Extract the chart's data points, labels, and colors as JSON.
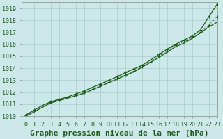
{
  "title": "Graphe pression niveau de la mer (hPa)",
  "xlim": [
    -0.5,
    23
  ],
  "ylim": [
    1010,
    1019.5
  ],
  "xticks": [
    0,
    1,
    2,
    3,
    4,
    5,
    6,
    7,
    8,
    9,
    10,
    11,
    12,
    13,
    14,
    15,
    16,
    17,
    18,
    19,
    20,
    21,
    22,
    23
  ],
  "yticks": [
    1010,
    1011,
    1012,
    1013,
    1014,
    1015,
    1016,
    1017,
    1018,
    1019
  ],
  "background_color": "#cce8e8",
  "grid_color": "#aacccc",
  "line_color_dark": "#1a5c1a",
  "line_color_mid": "#2d7a2d",
  "line1_x": [
    0,
    1,
    2,
    3,
    4,
    5,
    6,
    7,
    8,
    9,
    10,
    11,
    12,
    13,
    14,
    15,
    16,
    17,
    18,
    19,
    20,
    21,
    22,
    23
  ],
  "line1_y": [
    1010.1,
    1010.5,
    1010.9,
    1011.2,
    1011.4,
    1011.6,
    1011.85,
    1012.1,
    1012.4,
    1012.7,
    1013.0,
    1013.3,
    1013.65,
    1013.95,
    1014.25,
    1014.7,
    1015.15,
    1015.6,
    1016.0,
    1016.35,
    1016.7,
    1017.2,
    1018.3,
    1019.35
  ],
  "line2_x": [
    0,
    1,
    2,
    3,
    4,
    5,
    6,
    7,
    8,
    9,
    10,
    11,
    12,
    13,
    14,
    15,
    16,
    17,
    18,
    19,
    20,
    21,
    22,
    23
  ],
  "line2_y": [
    1010.05,
    1010.45,
    1010.85,
    1011.15,
    1011.35,
    1011.55,
    1011.75,
    1011.95,
    1012.25,
    1012.55,
    1012.85,
    1013.15,
    1013.45,
    1013.75,
    1014.15,
    1014.55,
    1015.0,
    1015.45,
    1015.9,
    1016.2,
    1016.6,
    1017.05,
    1017.6,
    1018.3
  ],
  "line3_x": [
    0,
    1,
    2,
    3,
    4,
    5,
    6,
    7,
    8,
    9,
    10,
    11,
    12,
    13,
    14,
    15,
    16,
    17,
    18,
    19,
    20,
    21,
    22,
    23
  ],
  "line3_y": [
    1010.0,
    1010.35,
    1010.75,
    1011.1,
    1011.3,
    1011.5,
    1011.7,
    1011.9,
    1012.2,
    1012.5,
    1012.8,
    1013.1,
    1013.4,
    1013.7,
    1014.1,
    1014.5,
    1014.9,
    1015.35,
    1015.8,
    1016.1,
    1016.5,
    1016.95,
    1017.45,
    1017.85
  ],
  "title_fontsize": 8,
  "tick_fontsize": 6,
  "tick_color": "#1a5c1a",
  "axis_color": "#888888",
  "title_color": "#1a5c1a"
}
